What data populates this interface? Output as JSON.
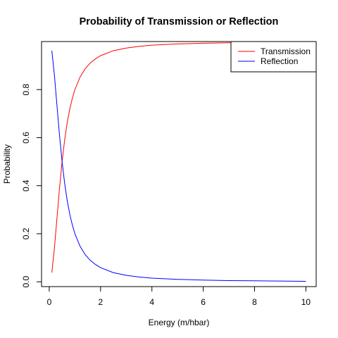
{
  "chart_data": {
    "type": "line",
    "title": "Probability of Transmission or Reflection",
    "xlabel": "Energy (m/hbar)",
    "ylabel": "Probability",
    "xlim": [
      -0.3,
      10.4
    ],
    "ylim": [
      -0.02,
      1.0
    ],
    "x_ticks": [
      0,
      2,
      4,
      6,
      8,
      10
    ],
    "x_tick_labels": [
      "0",
      "2",
      "4",
      "6",
      "8",
      "10"
    ],
    "y_ticks": [
      0.0,
      0.2,
      0.4,
      0.6,
      0.8
    ],
    "y_tick_labels": [
      "0.0",
      "0.2",
      "0.4",
      "0.6",
      "0.8"
    ],
    "grid": false,
    "legend_position": "top-right",
    "colors": {
      "transmission": "#ff0000",
      "reflection": "#0000ff"
    },
    "x": [
      0.1,
      0.2,
      0.3,
      0.4,
      0.5,
      0.6,
      0.7,
      0.8,
      0.9,
      1.0,
      1.2,
      1.4,
      1.6,
      1.8,
      2.0,
      2.5,
      3.0,
      3.5,
      4.0,
      5.0,
      6.0,
      7.0,
      8.0,
      9.0,
      10.0
    ],
    "series": [
      {
        "name": "Transmission",
        "color": "#ff0000",
        "values": [
          0.038,
          0.138,
          0.265,
          0.39,
          0.5,
          0.59,
          0.662,
          0.719,
          0.764,
          0.8,
          0.852,
          0.887,
          0.911,
          0.928,
          0.941,
          0.962,
          0.973,
          0.98,
          0.985,
          0.99,
          0.993,
          0.995,
          0.996,
          0.997,
          0.998
        ]
      },
      {
        "name": "Reflection",
        "color": "#0000ff",
        "values": [
          0.962,
          0.862,
          0.735,
          0.61,
          0.5,
          0.41,
          0.338,
          0.281,
          0.236,
          0.2,
          0.148,
          0.113,
          0.089,
          0.072,
          0.059,
          0.038,
          0.027,
          0.02,
          0.015,
          0.01,
          0.007,
          0.005,
          0.004,
          0.003,
          0.002
        ]
      }
    ]
  }
}
